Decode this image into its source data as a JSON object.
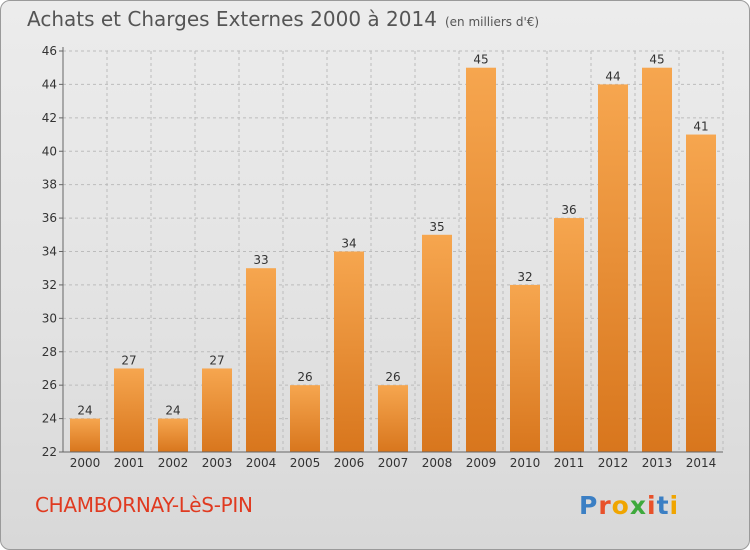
{
  "header": {
    "title": "Achats et Charges Externes 2000 à 2014",
    "unit": "(en milliers d'€)"
  },
  "footer": {
    "commune": "CHAMBORNAY-LèS-PIN",
    "logo_text": "Proxiti",
    "logo_colors": [
      "#3b7fc4",
      "#e8512a",
      "#f0a500",
      "#3ea93c",
      "#e8512a",
      "#3b7fc4",
      "#f0a500"
    ]
  },
  "colors": {
    "bar_top": "#f6a64f",
    "bar_bottom": "#d8761d",
    "grid": "#bcbcbc",
    "text": "#333333"
  },
  "chart_data": {
    "type": "bar",
    "title": "Achats et Charges Externes 2000 à 2014",
    "subtitle": "(en milliers d'€)",
    "categories": [
      "2000",
      "2001",
      "2002",
      "2003",
      "2004",
      "2005",
      "2006",
      "2007",
      "2008",
      "2009",
      "2010",
      "2011",
      "2012",
      "2013",
      "2014"
    ],
    "values": [
      24,
      27,
      24,
      27,
      33,
      26,
      34,
      26,
      35,
      45,
      32,
      36,
      44,
      45,
      41
    ],
    "ylim": [
      22,
      46
    ],
    "yticks": [
      22,
      24,
      26,
      28,
      30,
      32,
      34,
      36,
      38,
      40,
      42,
      44,
      46
    ],
    "grid": true,
    "xlabel": "",
    "ylabel": ""
  }
}
